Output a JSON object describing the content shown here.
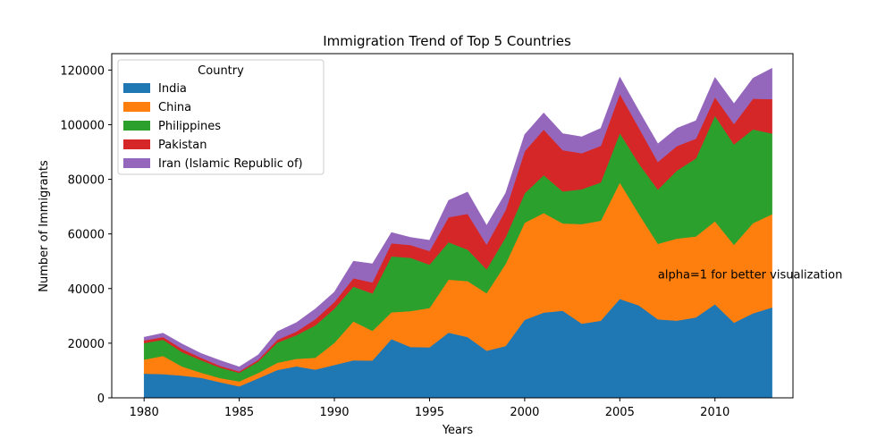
{
  "chart_data": {
    "type": "area",
    "stacked": true,
    "title": "Immigration Trend of Top 5 Countries",
    "xlabel": "Years",
    "ylabel": "Number of Immigrants",
    "xlim": [
      1978.3,
      2014.1
    ],
    "ylim": [
      0,
      126000
    ],
    "x_ticks": [
      1980,
      1985,
      1990,
      1995,
      2000,
      2005,
      2010
    ],
    "y_ticks": [
      0,
      20000,
      40000,
      60000,
      80000,
      100000,
      120000
    ],
    "grid": false,
    "legend_title": "Country",
    "legend_position": "top-left",
    "annotation": {
      "text": "alpha=1 for better visualization",
      "x": 2007,
      "y": 42000
    },
    "x": [
      1980,
      1981,
      1982,
      1983,
      1984,
      1985,
      1986,
      1987,
      1988,
      1989,
      1990,
      1991,
      1992,
      1993,
      1994,
      1995,
      1996,
      1997,
      1998,
      1999,
      2000,
      2001,
      2002,
      2003,
      2004,
      2005,
      2006,
      2007,
      2008,
      2009,
      2010,
      2011,
      2012,
      2013
    ],
    "series": [
      {
        "name": "India",
        "color": "#1f77b4",
        "values": [
          8880,
          8670,
          8147,
          7338,
          5704,
          4211,
          7150,
          10189,
          11522,
          10343,
          12041,
          13734,
          13673,
          21496,
          18620,
          18489,
          23859,
          22268,
          17241,
          18974,
          28572,
          31223,
          31889,
          27155,
          28235,
          36210,
          33848,
          28742,
          28261,
          29456,
          34235,
          27509,
          30933,
          33087
        ]
      },
      {
        "name": "China",
        "color": "#ff7f0e",
        "values": [
          5123,
          6682,
          3308,
          1863,
          1527,
          1816,
          1960,
          2643,
          2758,
          4323,
          8076,
          14255,
          10846,
          9817,
          13128,
          14398,
          19415,
          20475,
          21049,
          30069,
          35529,
          36434,
          31961,
          36439,
          36619,
          42584,
          33518,
          27642,
          30037,
          29622,
          30391,
          28502,
          33024,
          34129
        ]
      },
      {
        "name": "Philippines",
        "color": "#2ca02c",
        "values": [
          6051,
          5921,
          5249,
          4562,
          3801,
          3150,
          4166,
          7360,
          8639,
          11865,
          12509,
          12718,
          13670,
          20479,
          19532,
          15864,
          13692,
          11549,
          8735,
          9734,
          10763,
          13836,
          11707,
          12758,
          14004,
          18139,
          18400,
          19837,
          24887,
          28573,
          38617,
          36765,
          34315,
          29544
        ]
      },
      {
        "name": "Pakistan",
        "color": "#d62728",
        "values": [
          978,
          972,
          1201,
          900,
          668,
          514,
          691,
          1072,
          1334,
          2261,
          2470,
          3079,
          4071,
          4777,
          4666,
          4994,
          9125,
          13073,
          9068,
          9979,
          15400,
          16708,
          15110,
          13205,
          13399,
          14314,
          13127,
          10124,
          8994,
          7217,
          6811,
          7468,
          11227,
          12603
        ]
      },
      {
        "name": "Iran (Islamic Republic of)",
        "color": "#9467bd",
        "values": [
          1172,
          1429,
          1822,
          1592,
          1977,
          1648,
          1794,
          2989,
          3273,
          3781,
          3655,
          6250,
          6814,
          3959,
          2785,
          3956,
          6205,
          7982,
          7057,
          6208,
          6119,
          6127,
          6059,
          5999,
          6408,
          6204,
          6195,
          6663,
          6519,
          6580,
          7255,
          7479,
          7534,
          11291
        ]
      }
    ]
  }
}
